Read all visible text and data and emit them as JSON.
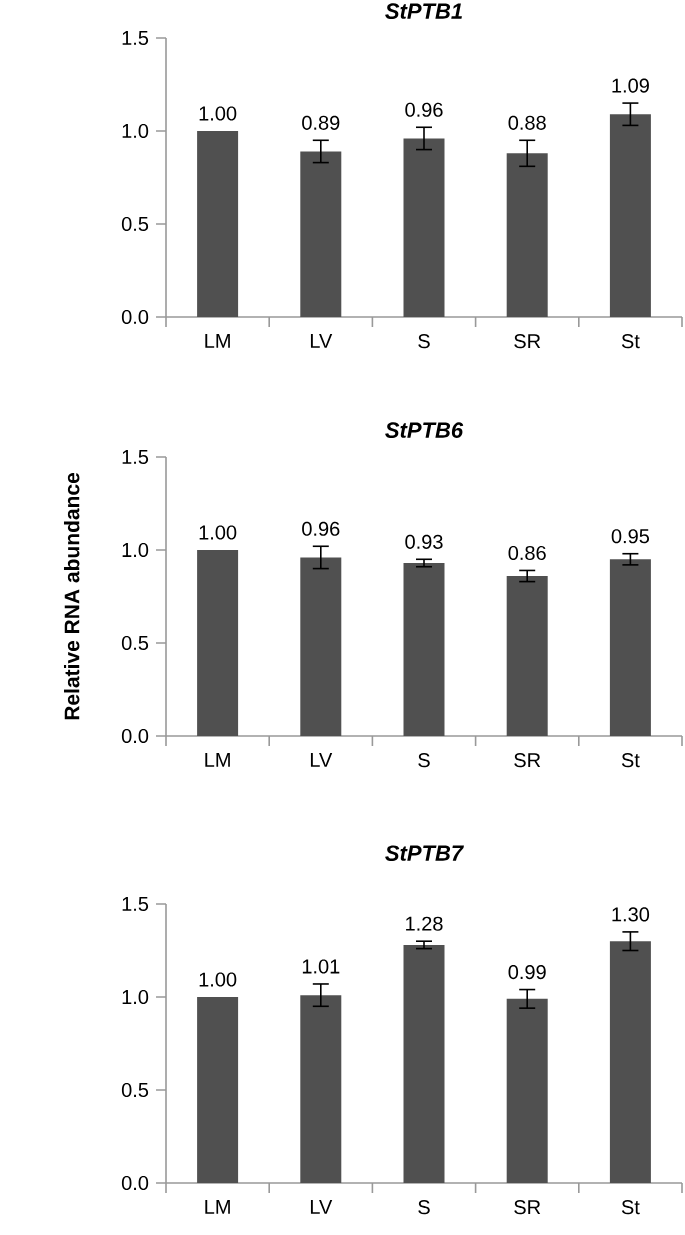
{
  "chart_data": [
    {
      "type": "bar",
      "title": "StPTB1",
      "categories": [
        "LM",
        "LV",
        "S",
        "SR",
        "St"
      ],
      "values": [
        1.0,
        0.89,
        0.96,
        0.88,
        1.09
      ],
      "errors": [
        null,
        0.06,
        0.06,
        0.07,
        0.06
      ],
      "value_labels": [
        "1.00",
        "0.89",
        "0.96",
        "0.88",
        "1.09"
      ],
      "color": "#505050",
      "ylim": [
        0,
        1.5
      ],
      "yticks": [
        {
          "value": 0,
          "label": "0.0"
        },
        {
          "value": 0.5,
          "label": "0.5"
        },
        {
          "value": 1,
          "label": "1.0"
        },
        {
          "value": 1.5,
          "label": "1.5"
        }
      ]
    },
    {
      "type": "bar",
      "title": "StPTB6",
      "ylabel": "Relative RNA abundance",
      "categories": [
        "LM",
        "LV",
        "S",
        "SR",
        "St"
      ],
      "values": [
        1.0,
        0.96,
        0.93,
        0.86,
        0.95
      ],
      "errors": [
        null,
        0.06,
        0.02,
        0.03,
        0.03
      ],
      "value_labels": [
        "1.00",
        "0.96",
        "0.93",
        "0.86",
        "0.95"
      ],
      "color": "#505050",
      "ylim": [
        0,
        1.5
      ],
      "yticks": [
        {
          "value": 0,
          "label": "0.0"
        },
        {
          "value": 0.5,
          "label": "0.5"
        },
        {
          "value": 1,
          "label": "1.0"
        },
        {
          "value": 1.5,
          "label": "1.5"
        }
      ]
    },
    {
      "type": "bar",
      "title": "StPTB7",
      "categories": [
        "LM",
        "LV",
        "S",
        "SR",
        "St"
      ],
      "values": [
        1.0,
        1.01,
        1.28,
        0.99,
        1.3
      ],
      "errors": [
        null,
        0.06,
        0.02,
        0.05,
        0.05
      ],
      "value_labels": [
        "1.00",
        "1.01",
        "1.28",
        "0.99",
        "1.30"
      ],
      "color": "#505050",
      "ylim": [
        0,
        1.5
      ],
      "yticks": [
        {
          "value": 0,
          "label": "0.0"
        },
        {
          "value": 0.5,
          "label": "0.5"
        },
        {
          "value": 1,
          "label": "1.0"
        },
        {
          "value": 1.5,
          "label": "1.5"
        }
      ]
    }
  ]
}
